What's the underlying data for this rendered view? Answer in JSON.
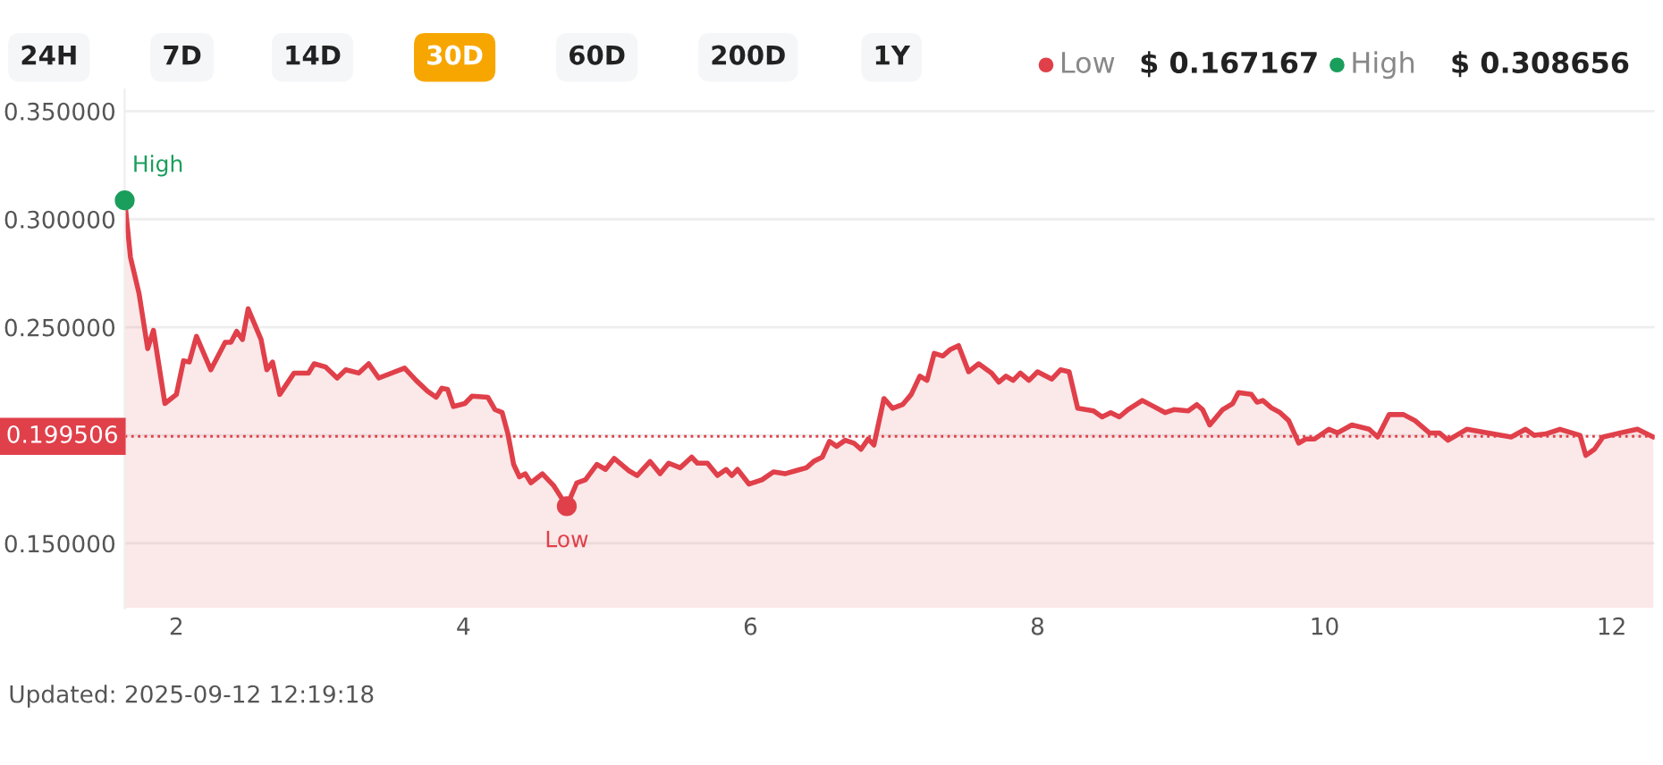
{
  "chart_data": {
    "type": "area",
    "x": [
      1.64,
      1.68,
      1.74,
      1.8,
      1.84,
      1.92,
      2.0,
      2.05,
      2.09,
      2.14,
      2.24,
      2.34,
      2.38,
      2.42,
      2.46,
      2.5,
      2.59,
      2.63,
      2.67,
      2.72,
      2.82,
      2.92,
      2.96,
      3.04,
      3.12,
      3.18,
      3.27,
      3.34,
      3.41,
      3.59,
      3.67,
      3.75,
      3.81,
      3.85,
      3.89,
      3.93,
      4.01,
      4.06,
      4.17,
      4.22,
      4.27,
      4.31,
      4.35,
      4.39,
      4.43,
      4.47,
      4.55,
      4.63,
      4.72,
      4.79,
      4.85,
      4.93,
      4.99,
      5.05,
      5.15,
      5.21,
      5.3,
      5.37,
      5.43,
      5.51,
      5.59,
      5.63,
      5.7,
      5.77,
      5.83,
      5.87,
      5.91,
      5.99,
      6.08,
      6.16,
      6.24,
      6.32,
      6.39,
      6.44,
      6.5,
      6.55,
      6.6,
      6.66,
      6.72,
      6.77,
      6.82,
      6.86,
      6.93,
      6.99,
      7.06,
      7.12,
      7.18,
      7.23,
      7.28,
      7.34,
      7.39,
      7.45,
      7.52,
      7.59,
      7.68,
      7.73,
      7.78,
      7.83,
      7.88,
      7.94,
      8.0,
      8.1,
      8.16,
      8.22,
      8.28,
      8.39,
      8.45,
      8.51,
      8.57,
      8.63,
      8.73,
      8.81,
      8.89,
      8.95,
      9.05,
      9.11,
      9.15,
      9.2,
      9.29,
      9.36,
      9.4,
      9.49,
      9.53,
      9.57,
      9.63,
      9.69,
      9.75,
      9.82,
      9.87,
      9.93,
      10.03,
      10.09,
      10.19,
      10.31,
      10.37,
      10.45,
      10.55,
      10.63,
      10.73,
      10.8,
      10.86,
      10.99,
      11.14,
      11.3,
      11.4,
      11.46,
      11.54,
      11.64,
      11.78,
      11.82,
      11.88,
      11.94,
      12.06,
      12.18,
      12.29
    ],
    "series": [
      {
        "color": "#e0404a",
        "values": [
          0.3087,
          0.2824,
          0.2655,
          0.2401,
          0.2486,
          0.2147,
          0.2189,
          0.2345,
          0.2339,
          0.2458,
          0.2303,
          0.243,
          0.243,
          0.2481,
          0.2443,
          0.2585,
          0.2443,
          0.2303,
          0.2339,
          0.2189,
          0.2288,
          0.2288,
          0.2331,
          0.2316,
          0.2265,
          0.2303,
          0.2288,
          0.2331,
          0.2265,
          0.2311,
          0.2254,
          0.2204,
          0.2176,
          0.2218,
          0.2212,
          0.2133,
          0.2147,
          0.2181,
          0.2176,
          0.2119,
          0.2105,
          0.2006,
          0.1865,
          0.1808,
          0.1822,
          0.178,
          0.1822,
          0.1766,
          0.1672,
          0.178,
          0.1794,
          0.1865,
          0.1842,
          0.1893,
          0.1837,
          0.1814,
          0.1879,
          0.1822,
          0.1871,
          0.185,
          0.1899,
          0.1871,
          0.1871,
          0.1814,
          0.1842,
          0.1814,
          0.1842,
          0.1774,
          0.1794,
          0.1831,
          0.1822,
          0.1837,
          0.185,
          0.1879,
          0.1899,
          0.1972,
          0.1949,
          0.1977,
          0.1964,
          0.1935,
          0.1983,
          0.1955,
          0.217,
          0.2125,
          0.2142,
          0.2189,
          0.2274,
          0.2254,
          0.2379,
          0.2367,
          0.2396,
          0.2415,
          0.2294,
          0.2331,
          0.2288,
          0.2246,
          0.2274,
          0.2254,
          0.2288,
          0.2254,
          0.2294,
          0.226,
          0.2303,
          0.2294,
          0.2125,
          0.2113,
          0.2085,
          0.2105,
          0.2085,
          0.2119,
          0.2161,
          0.2133,
          0.2105,
          0.2119,
          0.2113,
          0.2142,
          0.2119,
          0.2048,
          0.2119,
          0.2147,
          0.2198,
          0.2189,
          0.2153,
          0.2161,
          0.2127,
          0.2105,
          0.2068,
          0.1964,
          0.1983,
          0.1983,
          0.2028,
          0.2011,
          0.2048,
          0.2028,
          0.1992,
          0.2096,
          0.2096,
          0.2068,
          0.2011,
          0.2011,
          0.1977,
          0.2028,
          0.2011,
          0.1992,
          0.2028,
          0.2,
          0.2006,
          0.2028,
          0.2,
          0.1907,
          0.1935,
          0.1992,
          0.2011,
          0.2028,
          0.1992
        ]
      }
    ],
    "xlim": [
      1.64,
      12.3
    ],
    "xticks": [
      2,
      4,
      6,
      8,
      10,
      12
    ],
    "ylim": [
      0.12,
      0.36
    ],
    "yticks": [
      {
        "value": 0.35,
        "label": "0.350000"
      },
      {
        "value": 0.3,
        "label": "0.300000"
      },
      {
        "value": 0.25,
        "label": "0.250000"
      },
      {
        "value": 0.2,
        "label": null
      },
      {
        "value": 0.15,
        "label": "0.150000"
      }
    ],
    "grid": "y",
    "legend": false,
    "marker": "none",
    "line_style": "solid",
    "ref_lines": [
      {
        "axis": "y",
        "value": 0.199506,
        "label": "0.199506",
        "color": "#e0404a",
        "line_style": "dotted"
      }
    ],
    "annotations": [
      "24H",
      "7D",
      "14D",
      "30D",
      "60D",
      "200D",
      "1Y",
      "Low",
      "$ 0.167167",
      "High",
      "$ 0.308656",
      {
        "text": "High",
        "x": 1.64,
        "y": 0.3087
      },
      {
        "text": "Low",
        "x": 4.72,
        "y": 0.1672
      },
      "Updated: 2025-09-12 12:19:18"
    ]
  }
}
